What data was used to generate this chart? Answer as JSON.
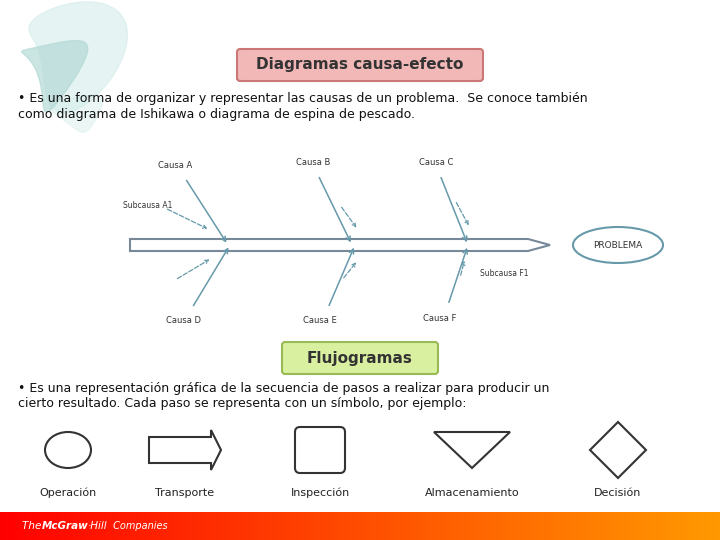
{
  "title1": "Diagramas causa-efecto",
  "title1_bg": "#f2b8b8",
  "title1_border": "#cc7777",
  "title2": "Flujogramas",
  "title2_bg": "#d8f0a0",
  "title2_border": "#99bb55",
  "text1_line1": "• Es una forma de organizar y representar las causas de un problema.  Se conoce también",
  "text1_line2": "como diagrama de Ishikawa o diagrama de espina de pescado.",
  "text2_line1": "• Es una representación gráfica de la secuencia de pasos a realizar para producir un",
  "text2_line2": "cierto resultado. Cada paso se representa con un símbolo, por ejemplo:",
  "bg_color": "#ffffff",
  "footer_text": "The McGraw•Hill Companies",
  "line_color": "#6699aa",
  "spine_color": "#778899",
  "problema_text": "PROBLEMA",
  "flowchart_labels": [
    "Operación",
    "Transporte",
    "Inspección",
    "Almacenamiento",
    "Decisión"
  ],
  "swirl_color1": "#b0d8d4",
  "swirl_color2": "#d0ebe8"
}
